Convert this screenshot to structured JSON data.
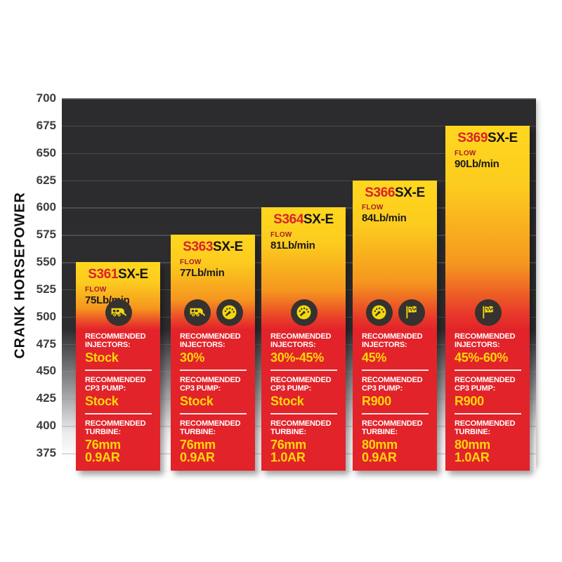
{
  "y_axis": {
    "label": "CRANK HORSEPOWER",
    "ticks": [
      "700",
      "675",
      "650",
      "625",
      "600",
      "575",
      "550",
      "525",
      "500",
      "475",
      "450",
      "425",
      "400",
      "375"
    ]
  },
  "chart_data": {
    "type": "bar",
    "title": "",
    "xlabel": "",
    "ylabel": "CRANK HORSEPOWER",
    "ylim": [
      375,
      700
    ],
    "grid": true,
    "legend": "none",
    "categories": [
      "S361SX-E",
      "S363SX-E",
      "S364SX-E",
      "S366SX-E",
      "S369SX-E"
    ],
    "values": [
      550,
      575,
      600,
      625,
      675
    ],
    "bars": [
      {
        "model_prefix": "S361",
        "model_suffix": "SX-E",
        "flow_label": "FLOW",
        "flow_value": "75Lb/min",
        "crank_hp": 550,
        "icons": [
          "towing-icon"
        ],
        "sections": [
          {
            "label": "RECOMMENDED INJECTORS:",
            "value": "Stock"
          },
          {
            "label": "RECOMMENDED CP3 PUMP:",
            "value": "Stock"
          },
          {
            "label": "RECOMMENDED TURBINE:",
            "value": "76mm",
            "value2": "0.9AR"
          }
        ]
      },
      {
        "model_prefix": "S363",
        "model_suffix": "SX-E",
        "flow_label": "FLOW",
        "flow_value": "77Lb/min",
        "crank_hp": 575,
        "icons": [
          "towing-icon",
          "gauge-icon"
        ],
        "sections": [
          {
            "label": "RECOMMENDED INJECTORS:",
            "value": "30%"
          },
          {
            "label": "RECOMMENDED CP3 PUMP:",
            "value": "Stock"
          },
          {
            "label": "RECOMMENDED TURBINE:",
            "value": "76mm",
            "value2": "0.9AR"
          }
        ]
      },
      {
        "model_prefix": "S364",
        "model_suffix": "SX-E",
        "flow_label": "FLOW",
        "flow_value": "81Lb/min",
        "crank_hp": 600,
        "icons": [
          "gauge-icon"
        ],
        "sections": [
          {
            "label": "RECOMMENDED INJECTORS:",
            "value": "30%-45%"
          },
          {
            "label": "RECOMMENDED CP3 PUMP:",
            "value": "Stock"
          },
          {
            "label": "RECOMMENDED TURBINE:",
            "value": "76mm",
            "value2": "1.0AR"
          }
        ]
      },
      {
        "model_prefix": "S366",
        "model_suffix": "SX-E",
        "flow_label": "FLOW",
        "flow_value": "84Lb/min",
        "crank_hp": 625,
        "icons": [
          "gauge-icon",
          "flag-icon"
        ],
        "sections": [
          {
            "label": "RECOMMENDED INJECTORS:",
            "value": "45%"
          },
          {
            "label": "RECOMMENDED CP3 PUMP:",
            "value": "R900"
          },
          {
            "label": "RECOMMENDED TURBINE:",
            "value": "80mm",
            "value2": "0.9AR"
          }
        ]
      },
      {
        "model_prefix": "S369",
        "model_suffix": "SX-E",
        "flow_label": "FLOW",
        "flow_value": "90Lb/min",
        "crank_hp": 675,
        "icons": [
          "flag-icon"
        ],
        "sections": [
          {
            "label": "RECOMMENDED INJECTORS:",
            "value": "45%-60%"
          },
          {
            "label": "RECOMMENDED CP3 PUMP:",
            "value": "R900"
          },
          {
            "label": "RECOMMENDED TURBINE:",
            "value": "80mm",
            "value2": "1.0AR"
          }
        ]
      }
    ]
  },
  "colors": {
    "bar_yellow_top": "#ffd71f",
    "bar_red": "#e2232a",
    "model_prefix_red": "#d9232a",
    "flow_label_red": "#a81e24",
    "value_yellow": "#ffd60a",
    "plot_dark": "#2c2c2e",
    "icon_circle": "#363230",
    "icon_glyph": "#f2d80e",
    "tick_gray": "#3d3d3d"
  }
}
